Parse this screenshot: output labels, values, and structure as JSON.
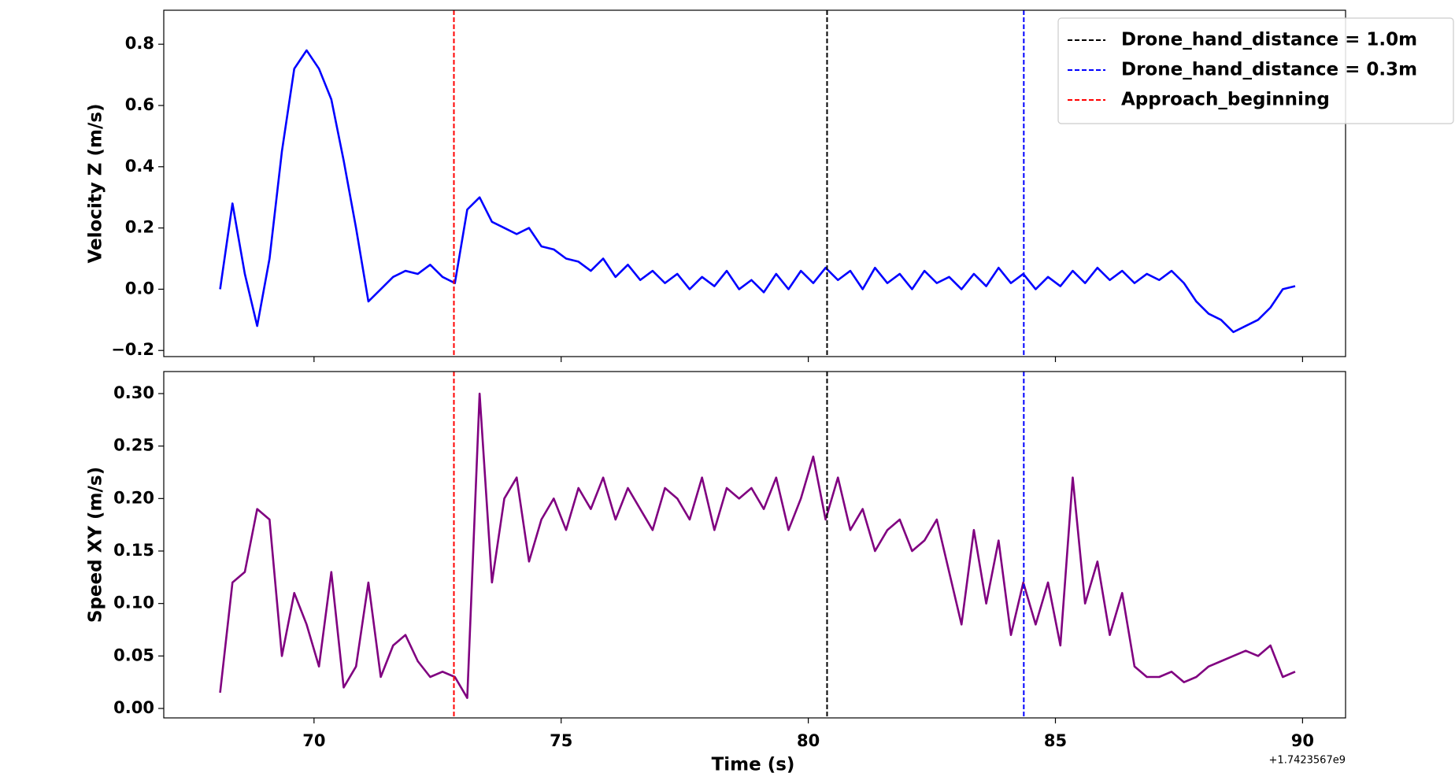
{
  "chart_data": [
    {
      "type": "line",
      "ylabel": "Velocity Z (m/s)",
      "xlim": [
        66.96,
        90.87
      ],
      "xticks": [
        70,
        75,
        80,
        85,
        90
      ],
      "xtick_labels": false,
      "ylim": [
        -0.22,
        0.911
      ],
      "yticks": [
        {
          "value": -0.2,
          "label": "−0.2"
        },
        {
          "value": 0,
          "label": "0.0"
        },
        0.2,
        0.4,
        0.6,
        0.8
      ],
      "x": [
        68.1,
        68.35,
        68.6,
        68.85,
        69.1,
        69.35,
        69.6,
        69.85,
        70.1,
        70.35,
        70.6,
        70.85,
        71.1,
        71.35,
        71.6,
        71.85,
        72.1,
        72.35,
        72.6,
        72.85,
        73.1,
        73.35,
        73.6,
        73.85,
        74.1,
        74.35,
        74.6,
        74.85,
        75.1,
        75.35,
        75.6,
        75.85,
        76.1,
        76.35,
        76.6,
        76.85,
        77.1,
        77.35,
        77.6,
        77.85,
        78.1,
        78.35,
        78.6,
        78.85,
        79.1,
        79.35,
        79.6,
        79.85,
        80.1,
        80.35,
        80.6,
        80.85,
        81.1,
        81.35,
        81.6,
        81.85,
        82.1,
        82.35,
        82.6,
        82.85,
        83.1,
        83.35,
        83.6,
        83.85,
        84.1,
        84.35,
        84.6,
        84.85,
        85.1,
        85.35,
        85.6,
        85.85,
        86.1,
        86.35,
        86.6,
        86.85,
        87.1,
        87.35,
        87.6,
        87.85,
        88.1,
        88.35,
        88.6,
        88.85,
        89.1,
        89.35,
        89.6,
        89.85
      ],
      "series": [
        {
          "color": "#0000ff",
          "values": [
            0.0,
            0.28,
            0.05,
            -0.12,
            0.1,
            0.45,
            0.72,
            0.78,
            0.72,
            0.62,
            0.42,
            0.2,
            -0.04,
            0.0,
            0.04,
            0.06,
            0.05,
            0.08,
            0.04,
            0.02,
            0.26,
            0.3,
            0.22,
            0.2,
            0.18,
            0.2,
            0.14,
            0.13,
            0.1,
            0.09,
            0.06,
            0.1,
            0.04,
            0.08,
            0.03,
            0.06,
            0.02,
            0.05,
            0.0,
            0.04,
            0.01,
            0.06,
            0.0,
            0.03,
            -0.01,
            0.05,
            0.0,
            0.06,
            0.02,
            0.07,
            0.03,
            0.06,
            0.0,
            0.07,
            0.02,
            0.05,
            0.0,
            0.06,
            0.02,
            0.04,
            0.0,
            0.05,
            0.01,
            0.07,
            0.02,
            0.05,
            0.0,
            0.04,
            0.01,
            0.06,
            0.02,
            0.07,
            0.03,
            0.06,
            0.02,
            0.05,
            0.03,
            0.06,
            0.02,
            -0.04,
            -0.08,
            -0.1,
            -0.14,
            -0.12,
            -0.1,
            -0.06,
            0.0,
            0.01
          ]
        }
      ],
      "vlines": [
        {
          "name": "Drone_hand_distance = 1.0m",
          "color": "#000000",
          "x": 80.38
        },
        {
          "name": "Drone_hand_distance = 0.3m",
          "color": "#0000ff",
          "x": 84.36
        },
        {
          "name": "Approach_beginning",
          "color": "#ff0000",
          "x": 72.83
        }
      ],
      "legend": "upper right"
    },
    {
      "type": "line",
      "ylabel": "Speed XY (m/s)",
      "xlabel": "Time (s)",
      "x_offset": "+1.7423567e9",
      "xlim": [
        66.96,
        90.87
      ],
      "xticks": [
        70,
        75,
        80,
        85,
        90
      ],
      "xtick_labels": true,
      "ylim": [
        -0.009,
        0.321
      ],
      "yticks": [
        {
          "value": 0,
          "label": "0.00"
        },
        0.05,
        {
          "value": 0.1,
          "label": "0.10"
        },
        0.15,
        {
          "value": 0.2,
          "label": "0.20"
        },
        0.25,
        {
          "value": 0.3,
          "label": "0.30"
        }
      ],
      "x": [
        68.1,
        68.35,
        68.6,
        68.85,
        69.1,
        69.35,
        69.6,
        69.85,
        70.1,
        70.35,
        70.6,
        70.85,
        71.1,
        71.35,
        71.6,
        71.85,
        72.1,
        72.35,
        72.6,
        72.85,
        73.1,
        73.35,
        73.6,
        73.85,
        74.1,
        74.35,
        74.6,
        74.85,
        75.1,
        75.35,
        75.6,
        75.85,
        76.1,
        76.35,
        76.6,
        76.85,
        77.1,
        77.35,
        77.6,
        77.85,
        78.1,
        78.35,
        78.6,
        78.85,
        79.1,
        79.35,
        79.6,
        79.85,
        80.1,
        80.35,
        80.6,
        80.85,
        81.1,
        81.35,
        81.6,
        81.85,
        82.1,
        82.35,
        82.6,
        82.85,
        83.1,
        83.35,
        83.6,
        83.85,
        84.1,
        84.35,
        84.6,
        84.85,
        85.1,
        85.35,
        85.6,
        85.85,
        86.1,
        86.35,
        86.6,
        86.85,
        87.1,
        87.35,
        87.6,
        87.85,
        88.1,
        88.35,
        88.6,
        88.85,
        89.1,
        89.35,
        89.6,
        89.85
      ],
      "series": [
        {
          "color": "#800080",
          "values": [
            0.015,
            0.12,
            0.13,
            0.19,
            0.18,
            0.05,
            0.11,
            0.08,
            0.04,
            0.13,
            0.02,
            0.04,
            0.12,
            0.03,
            0.06,
            0.07,
            0.045,
            0.03,
            0.035,
            0.03,
            0.01,
            0.3,
            0.12,
            0.2,
            0.22,
            0.14,
            0.18,
            0.2,
            0.17,
            0.21,
            0.19,
            0.22,
            0.18,
            0.21,
            0.19,
            0.17,
            0.21,
            0.2,
            0.18,
            0.22,
            0.17,
            0.21,
            0.2,
            0.21,
            0.19,
            0.22,
            0.17,
            0.2,
            0.24,
            0.18,
            0.22,
            0.17,
            0.19,
            0.15,
            0.17,
            0.18,
            0.15,
            0.16,
            0.18,
            0.13,
            0.08,
            0.17,
            0.1,
            0.16,
            0.07,
            0.12,
            0.08,
            0.12,
            0.06,
            0.22,
            0.1,
            0.14,
            0.07,
            0.11,
            0.04,
            0.03,
            0.03,
            0.035,
            0.025,
            0.03,
            0.04,
            0.045,
            0.05,
            0.055,
            0.05,
            0.06,
            0.03,
            0.035
          ]
        }
      ],
      "vlines": [
        {
          "color": "#000000",
          "x": 80.38
        },
        {
          "color": "#0000ff",
          "x": 84.36
        },
        {
          "color": "#ff0000",
          "x": 72.83
        }
      ]
    }
  ]
}
